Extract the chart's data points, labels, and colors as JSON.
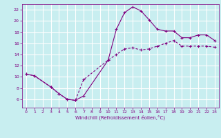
{
  "xlabel": "Windchill (Refroidissement éolien,°C)",
  "bg_color": "#c8eef0",
  "grid_color": "#ffffff",
  "line_color": "#800080",
  "xlim": [
    -0.5,
    23.5
  ],
  "ylim": [
    4.5,
    23.0
  ],
  "xticks": [
    0,
    1,
    2,
    3,
    4,
    5,
    6,
    7,
    8,
    9,
    10,
    11,
    12,
    13,
    14,
    15,
    16,
    17,
    18,
    19,
    20,
    21,
    22,
    23
  ],
  "yticks": [
    6,
    8,
    10,
    12,
    14,
    16,
    18,
    20,
    22
  ],
  "line1_x": [
    0,
    1,
    3,
    4,
    5,
    6,
    7,
    10,
    11,
    12,
    13,
    14,
    15,
    16,
    17,
    18,
    19,
    20,
    21,
    22,
    23
  ],
  "line1_y": [
    10.5,
    10.2,
    8.2,
    7.0,
    6.0,
    5.8,
    6.6,
    13.0,
    18.5,
    21.5,
    22.5,
    21.8,
    20.2,
    18.5,
    18.2,
    18.2,
    17.0,
    17.0,
    17.5,
    17.5,
    16.5
  ],
  "line2_x": [
    0,
    1,
    3,
    4,
    5,
    6,
    7,
    10,
    11,
    12,
    13,
    14,
    15,
    16,
    17,
    18,
    19,
    20,
    21,
    22,
    23
  ],
  "line2_y": [
    10.5,
    10.2,
    8.2,
    7.0,
    6.0,
    5.8,
    9.5,
    13.0,
    14.0,
    15.0,
    15.2,
    14.8,
    15.0,
    15.5,
    16.0,
    16.5,
    15.5,
    15.5,
    15.5,
    15.5,
    15.3
  ]
}
